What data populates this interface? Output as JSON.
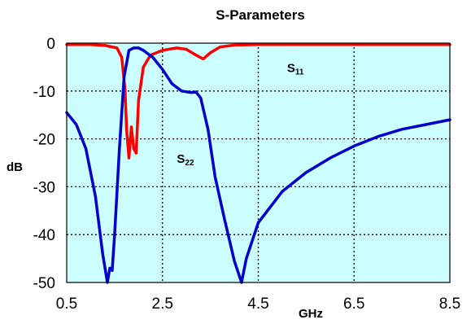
{
  "chart_data": {
    "type": "line",
    "title": "S-Parameters",
    "xlabel": "GHz",
    "ylabel": "dB",
    "xlim": [
      0.5,
      8.5
    ],
    "ylim": [
      -50,
      0
    ],
    "x_ticks": [
      "0.5",
      "2.5",
      "4.5",
      "6.5",
      "8.5"
    ],
    "y_ticks": [
      "0",
      "-10",
      "-20",
      "-30",
      "-40",
      "-50"
    ],
    "grid": true,
    "plot_background": "#ccffff",
    "annotations": [
      {
        "main": "S",
        "sub": "11",
        "x": 5.1,
        "y": -6
      },
      {
        "main": "S",
        "sub": "22",
        "x": 2.8,
        "y": -25
      }
    ],
    "series": [
      {
        "name": "S11",
        "color": "#ff0000",
        "x": [
          0.5,
          1.0,
          1.3,
          1.55,
          1.65,
          1.72,
          1.75,
          1.8,
          1.85,
          1.9,
          1.95,
          2.0,
          2.1,
          2.25,
          2.5,
          2.8,
          3.0,
          3.2,
          3.35,
          3.5,
          3.7,
          4.0,
          4.5,
          5.0,
          6.0,
          7.0,
          8.0,
          8.5
        ],
        "values": [
          -0.3,
          -0.3,
          -0.5,
          -1.0,
          -3.0,
          -10.0,
          -18.0,
          -24.0,
          -17.5,
          -22.0,
          -23.0,
          -12.0,
          -5.0,
          -2.5,
          -1.5,
          -1.0,
          -1.3,
          -2.5,
          -3.3,
          -2.0,
          -0.8,
          -0.4,
          -0.3,
          -0.3,
          -0.3,
          -0.3,
          -0.3,
          -0.3
        ]
      },
      {
        "name": "S22",
        "color": "#0000cc",
        "x": [
          0.5,
          0.7,
          0.9,
          1.1,
          1.25,
          1.35,
          1.4,
          1.45,
          1.5,
          1.6,
          1.7,
          1.8,
          1.9,
          2.0,
          2.1,
          2.3,
          2.5,
          2.7,
          2.9,
          3.1,
          3.2,
          3.3,
          3.45,
          3.6,
          3.8,
          4.0,
          4.15,
          4.25,
          4.5,
          5.0,
          5.5,
          6.0,
          6.5,
          7.0,
          7.5,
          8.0,
          8.5
        ],
        "values": [
          -14.5,
          -17.0,
          -22.0,
          -32.0,
          -44.0,
          -50.0,
          -47.0,
          -47.5,
          -40.0,
          -22.0,
          -7.0,
          -1.5,
          -1.0,
          -1.0,
          -1.5,
          -3.0,
          -5.5,
          -8.5,
          -10.0,
          -10.3,
          -10.2,
          -11.5,
          -18.0,
          -28.0,
          -37.0,
          -45.5,
          -50.0,
          -45.0,
          -37.5,
          -31.0,
          -27.0,
          -24.0,
          -21.5,
          -19.5,
          -18.0,
          -17.0,
          -16.0
        ]
      }
    ]
  }
}
